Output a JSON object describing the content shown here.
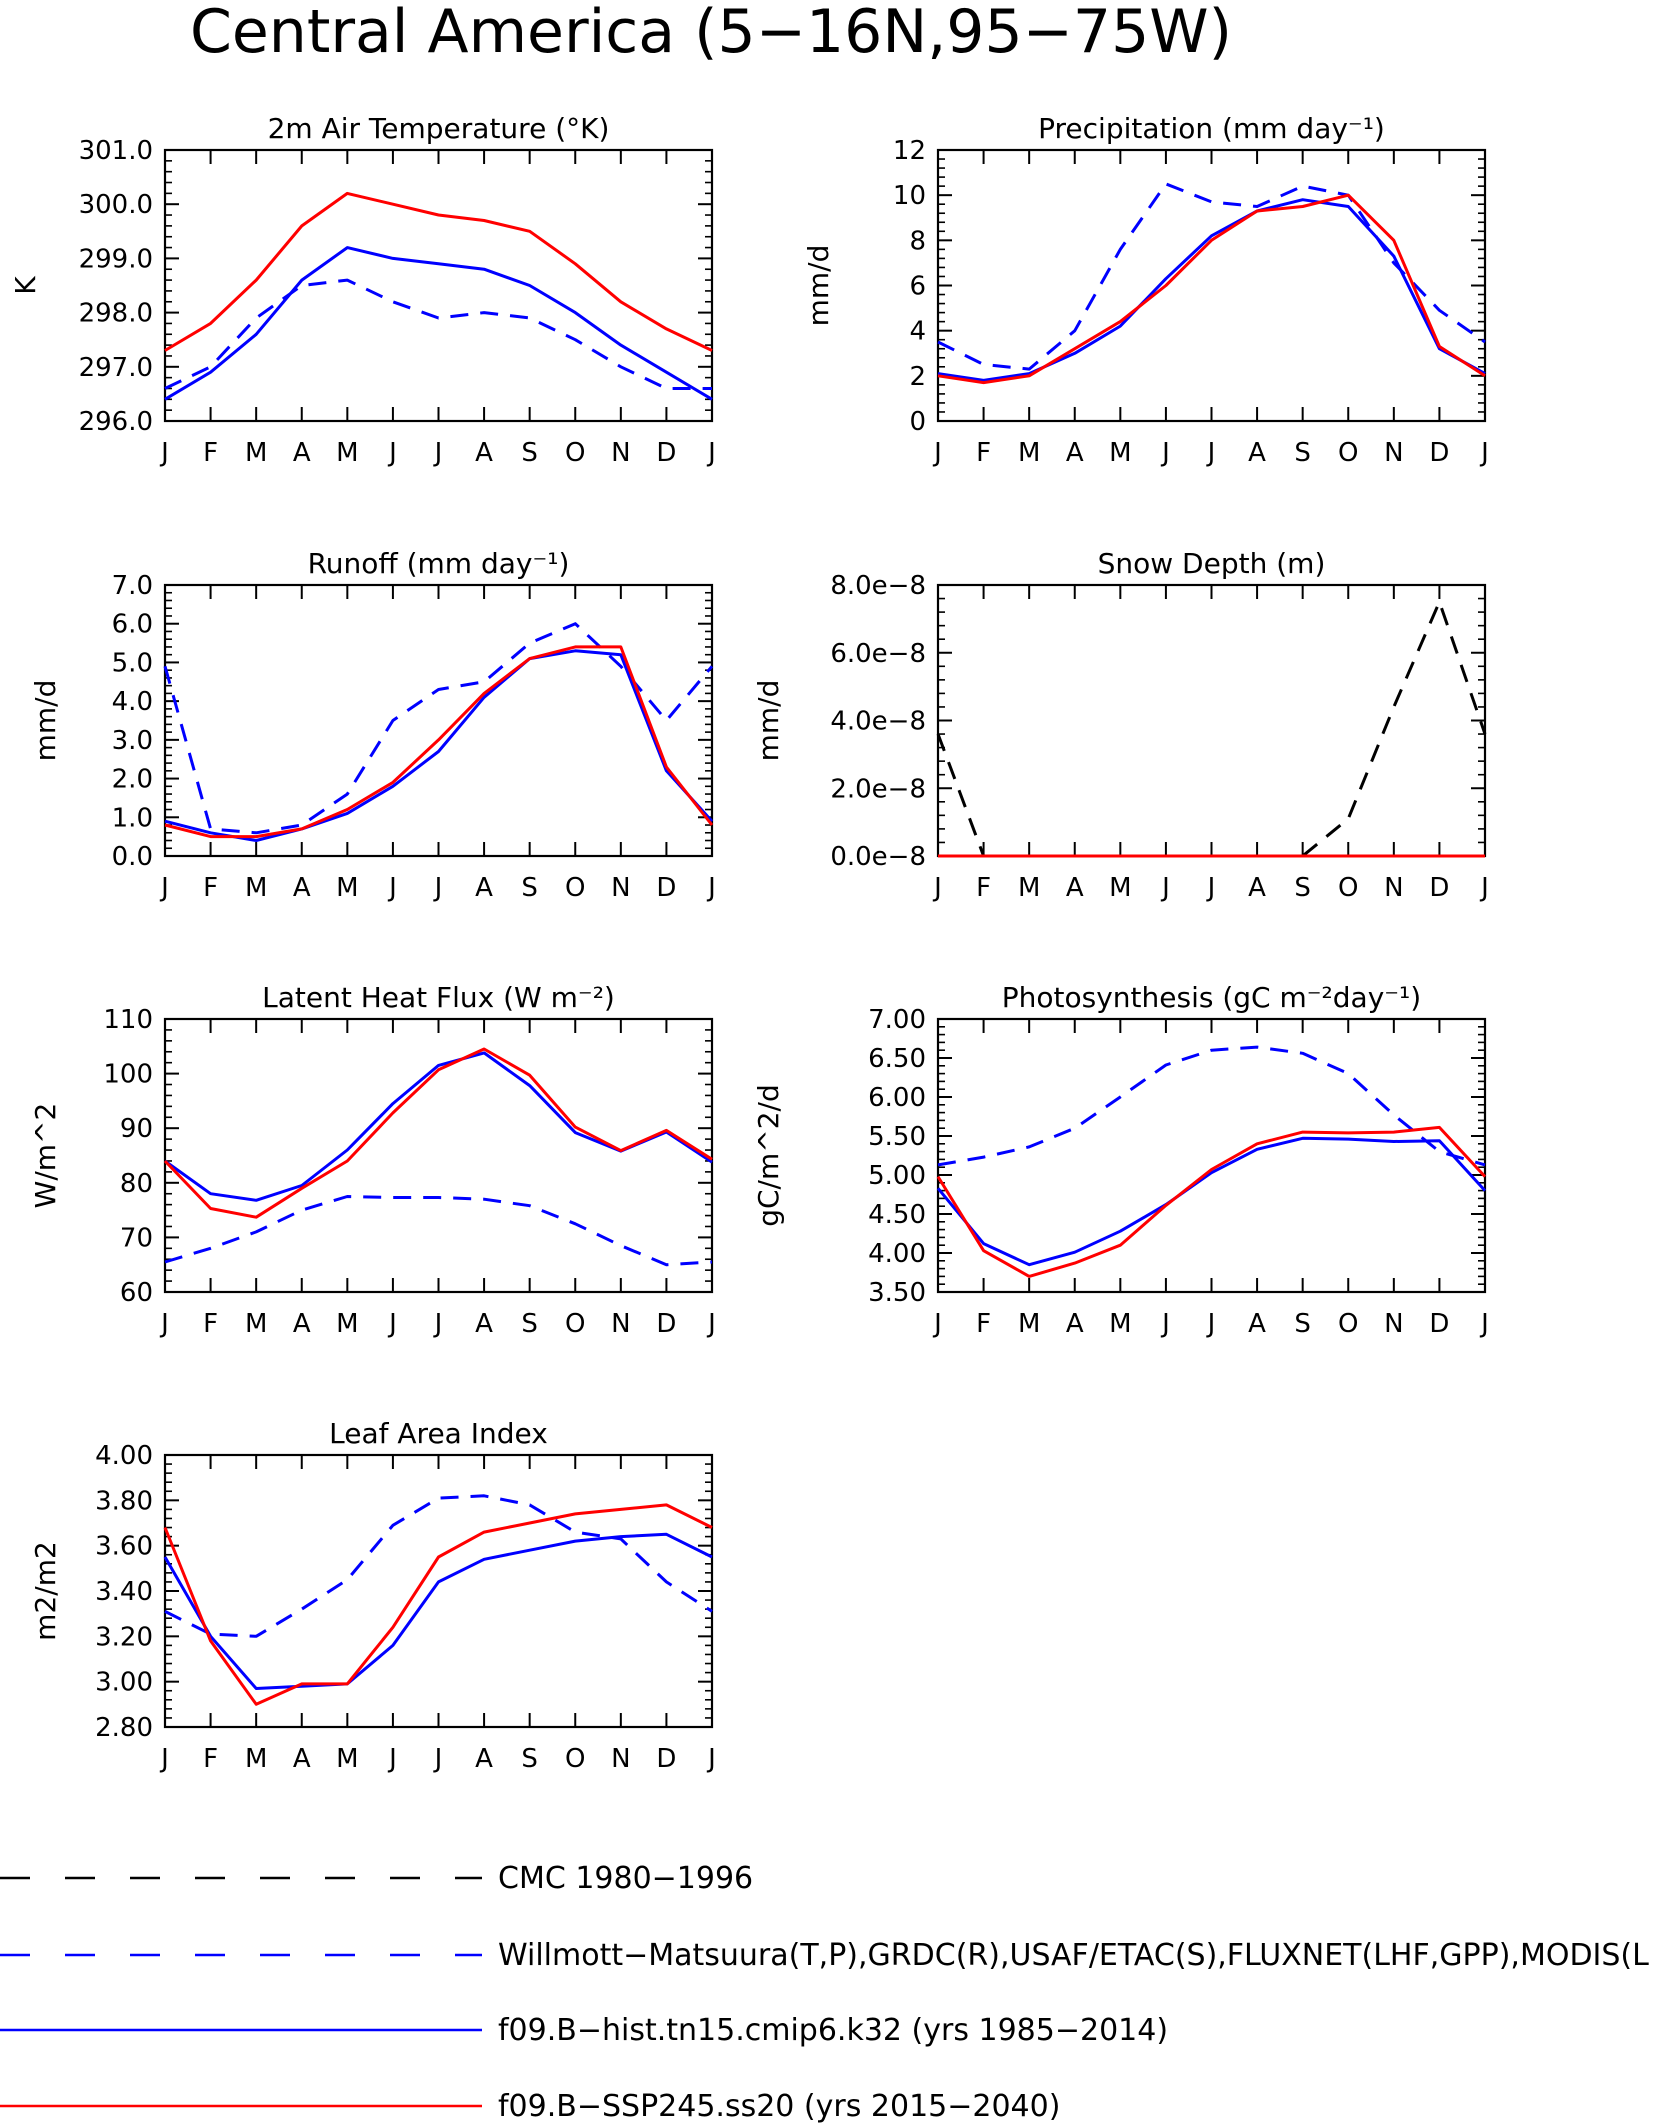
{
  "figure": {
    "title": "Central America (5−16N,95−75W)"
  },
  "colors": {
    "obs_black": "#000000",
    "obs_blue": "#0000ff",
    "model_hist": "#0000ff",
    "model_ssp": "#ff0000"
  },
  "months": [
    "J",
    "F",
    "M",
    "A",
    "M",
    "J",
    "J",
    "A",
    "S",
    "O",
    "N",
    "D",
    "J"
  ],
  "legend": [
    {
      "label": "CMC 1980−1996",
      "color": "#000000",
      "dash": true
    },
    {
      "label": "Willmott−Matsuura(T,P),GRDC(R),USAF/ETAC(S),FLUXNET(LHF,GPP),MODIS(L",
      "color": "#0000ff",
      "dash": true
    },
    {
      "label": "f09.B−hist.tn15.cmip6.k32 (yrs 1985−2014)",
      "color": "#0000ff",
      "dash": false
    },
    {
      "label": "f09.B−SSP245.ss20 (yrs 2015−2040)",
      "color": "#ff0000",
      "dash": false
    }
  ],
  "chart_data": [
    {
      "type": "line",
      "title": "2m Air Temperature (°K)",
      "ylabel": "K",
      "ylim": [
        296.0,
        301.0
      ],
      "yticks": [
        "296.0",
        "297.0",
        "298.0",
        "299.0",
        "300.0",
        "301.0"
      ],
      "x": [
        "J",
        "F",
        "M",
        "A",
        "M",
        "J",
        "J",
        "A",
        "S",
        "O",
        "N",
        "D",
        "J"
      ],
      "series": [
        {
          "style": "dashed",
          "color": "#0000ff",
          "values": [
            296.6,
            297.0,
            297.9,
            298.5,
            298.6,
            298.2,
            297.9,
            298.0,
            297.9,
            297.5,
            297.0,
            296.6,
            296.6
          ]
        },
        {
          "style": "solid",
          "color": "#0000ff",
          "values": [
            296.4,
            296.9,
            297.6,
            298.6,
            299.2,
            299.0,
            298.9,
            298.8,
            298.5,
            298.0,
            297.4,
            296.9,
            296.4
          ]
        },
        {
          "style": "solid",
          "color": "#ff0000",
          "values": [
            297.3,
            297.8,
            298.6,
            299.6,
            300.2,
            300.0,
            299.8,
            299.7,
            299.5,
            298.9,
            298.2,
            297.7,
            297.3
          ]
        }
      ]
    },
    {
      "type": "line",
      "title": "Precipitation (mm day⁻¹)",
      "ylabel": "mm/d",
      "ylim": [
        0,
        12
      ],
      "yticks": [
        "0",
        "2",
        "4",
        "6",
        "8",
        "10",
        "12"
      ],
      "x": [
        "J",
        "F",
        "M",
        "A",
        "M",
        "J",
        "J",
        "A",
        "S",
        "O",
        "N",
        "D",
        "J"
      ],
      "series": [
        {
          "style": "dashed",
          "color": "#0000ff",
          "values": [
            3.5,
            2.5,
            2.3,
            4.0,
            7.6,
            10.5,
            9.7,
            9.5,
            10.4,
            10.0,
            7.0,
            4.9,
            3.5
          ]
        },
        {
          "style": "solid",
          "color": "#0000ff",
          "values": [
            2.1,
            1.8,
            2.1,
            3.0,
            4.2,
            6.3,
            8.2,
            9.3,
            9.8,
            9.5,
            7.3,
            3.2,
            2.1
          ]
        },
        {
          "style": "solid",
          "color": "#ff0000",
          "values": [
            2.0,
            1.7,
            2.0,
            3.2,
            4.4,
            6.0,
            8.0,
            9.3,
            9.5,
            10.0,
            8.0,
            3.3,
            2.0
          ]
        }
      ]
    },
    {
      "type": "line",
      "title": "Runoff (mm day⁻¹)",
      "ylabel": "mm/d",
      "ylim": [
        0,
        7
      ],
      "yticks": [
        "0.0",
        "1.0",
        "2.0",
        "3.0",
        "4.0",
        "5.0",
        "6.0",
        "7.0"
      ],
      "x": [
        "J",
        "F",
        "M",
        "A",
        "M",
        "J",
        "J",
        "A",
        "S",
        "O",
        "N",
        "D",
        "J"
      ],
      "series": [
        {
          "style": "dashed",
          "color": "#0000ff",
          "values": [
            4.9,
            0.7,
            0.6,
            0.8,
            1.6,
            3.5,
            4.3,
            4.5,
            5.5,
            6.0,
            4.9,
            3.5,
            4.9
          ]
        },
        {
          "style": "solid",
          "color": "#0000ff",
          "values": [
            0.9,
            0.6,
            0.4,
            0.7,
            1.1,
            1.8,
            2.7,
            4.1,
            5.1,
            5.3,
            5.2,
            2.2,
            0.9
          ]
        },
        {
          "style": "solid",
          "color": "#ff0000",
          "values": [
            0.8,
            0.5,
            0.5,
            0.7,
            1.2,
            1.9,
            3.0,
            4.2,
            5.1,
            5.4,
            5.4,
            2.3,
            0.8
          ]
        }
      ]
    },
    {
      "type": "line",
      "title": "Snow Depth (m)",
      "ylabel": "mm/d",
      "ylim": [
        0,
        8e-08
      ],
      "yticks": [
        "0.0e−8",
        "2.0e−8",
        "4.0e−8",
        "6.0e−8",
        "8.0e−8"
      ],
      "x": [
        "J",
        "F",
        "M",
        "A",
        "M",
        "J",
        "J",
        "A",
        "S",
        "O",
        "N",
        "D",
        "J"
      ],
      "series": [
        {
          "style": "dashed",
          "color": "#000000",
          "values": [
            3.6e-08,
            0,
            0,
            0,
            0,
            0,
            0,
            0,
            0,
            1.1e-08,
            4.4e-08,
            7.5e-08,
            3.6e-08
          ]
        },
        {
          "style": "solid",
          "color": "#0000ff",
          "values": [
            0,
            0,
            0,
            0,
            0,
            0,
            0,
            0,
            0,
            0,
            0,
            0,
            0
          ]
        },
        {
          "style": "solid",
          "color": "#ff0000",
          "values": [
            0,
            0,
            0,
            0,
            0,
            0,
            0,
            0,
            0,
            0,
            0,
            0,
            0
          ]
        }
      ]
    },
    {
      "type": "line",
      "title": "Latent Heat Flux (W m⁻²)",
      "ylabel": "W/m^2",
      "ylim": [
        60,
        110
      ],
      "yticks": [
        "60",
        "70",
        "80",
        "90",
        "100",
        "110"
      ],
      "x": [
        "J",
        "F",
        "M",
        "A",
        "M",
        "J",
        "J",
        "A",
        "S",
        "O",
        "N",
        "D",
        "J"
      ],
      "series": [
        {
          "style": "dashed",
          "color": "#0000ff",
          "values": [
            65.5,
            68.0,
            71.0,
            75.0,
            77.5,
            77.3,
            77.3,
            77.0,
            75.8,
            72.5,
            68.5,
            65.0,
            65.5
          ]
        },
        {
          "style": "solid",
          "color": "#0000ff",
          "values": [
            84.0,
            78.0,
            76.8,
            79.5,
            86.0,
            94.5,
            101.5,
            103.8,
            97.8,
            89.2,
            85.8,
            89.3,
            83.8
          ]
        },
        {
          "style": "solid",
          "color": "#ff0000",
          "values": [
            84.0,
            75.3,
            73.7,
            79.0,
            84.0,
            92.8,
            100.7,
            104.5,
            99.7,
            90.2,
            85.9,
            89.6,
            84.3
          ]
        }
      ]
    },
    {
      "type": "line",
      "title": "Photosynthesis (gC m⁻²day⁻¹)",
      "ylabel": "gC/m^2/d",
      "ylim": [
        3.5,
        7.0
      ],
      "yticks": [
        "3.50",
        "4.00",
        "4.50",
        "5.00",
        "5.50",
        "6.00",
        "6.50",
        "7.00"
      ],
      "x": [
        "J",
        "F",
        "M",
        "A",
        "M",
        "J",
        "J",
        "A",
        "S",
        "O",
        "N",
        "D",
        "J"
      ],
      "series": [
        {
          "style": "dashed",
          "color": "#0000ff",
          "values": [
            5.13,
            5.23,
            5.36,
            5.6,
            6.0,
            6.41,
            6.6,
            6.64,
            6.56,
            6.3,
            5.77,
            5.3,
            5.13
          ]
        },
        {
          "style": "solid",
          "color": "#0000ff",
          "values": [
            4.83,
            4.12,
            3.85,
            4.01,
            4.28,
            4.62,
            5.03,
            5.33,
            5.47,
            5.46,
            5.43,
            5.44,
            4.8
          ]
        },
        {
          "style": "solid",
          "color": "#ff0000",
          "values": [
            4.98,
            4.03,
            3.7,
            3.87,
            4.1,
            4.61,
            5.07,
            5.4,
            5.55,
            5.54,
            5.55,
            5.61,
            4.98
          ]
        }
      ]
    },
    {
      "type": "line",
      "title": "Leaf Area Index",
      "ylabel": "m2/m2",
      "ylim": [
        2.8,
        4.0
      ],
      "yticks": [
        "2.80",
        "3.00",
        "3.20",
        "3.40",
        "3.60",
        "3.80",
        "4.00"
      ],
      "x": [
        "J",
        "F",
        "M",
        "A",
        "M",
        "J",
        "J",
        "A",
        "S",
        "O",
        "N",
        "D",
        "J"
      ],
      "series": [
        {
          "style": "dashed",
          "color": "#0000ff",
          "values": [
            3.31,
            3.21,
            3.2,
            3.32,
            3.45,
            3.69,
            3.81,
            3.82,
            3.78,
            3.66,
            3.63,
            3.44,
            3.31
          ]
        },
        {
          "style": "solid",
          "color": "#0000ff",
          "values": [
            3.55,
            3.2,
            2.97,
            2.98,
            2.99,
            3.16,
            3.44,
            3.54,
            3.58,
            3.62,
            3.64,
            3.65,
            3.55
          ]
        },
        {
          "style": "solid",
          "color": "#ff0000",
          "values": [
            3.68,
            3.18,
            2.9,
            2.99,
            2.99,
            3.24,
            3.55,
            3.66,
            3.7,
            3.74,
            3.76,
            3.78,
            3.68
          ]
        }
      ]
    }
  ]
}
